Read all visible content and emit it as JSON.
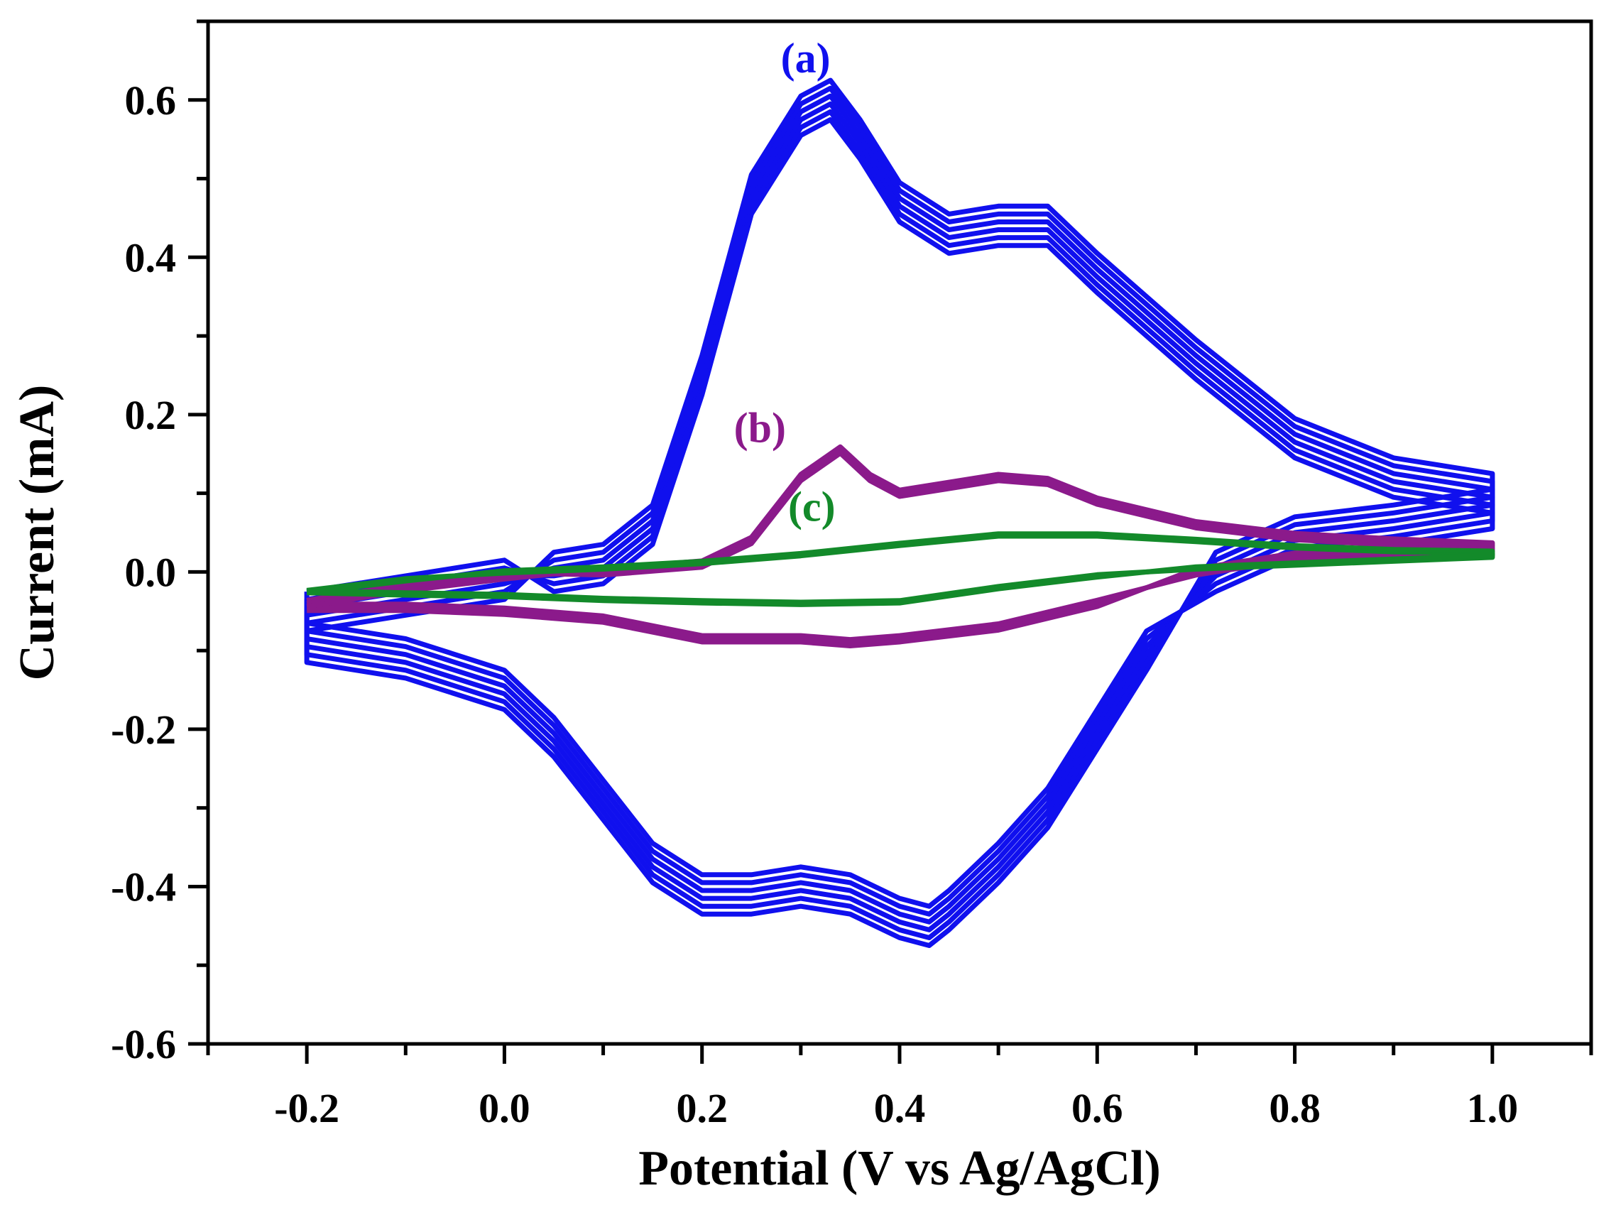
{
  "chart_data": {
    "type": "line",
    "title": "",
    "xlabel": "Potential (V vs Ag/AgCl)",
    "ylabel": "Current (mA)",
    "xlim": [
      -0.3,
      1.1
    ],
    "ylim": [
      -0.6,
      0.7
    ],
    "x_ticks": [
      -0.2,
      0.0,
      0.2,
      0.4,
      0.6,
      0.8,
      1.0
    ],
    "x_tick_labels": [
      "-0.2",
      "0.0",
      "0.2",
      "0.4",
      "0.6",
      "0.8",
      "1.0"
    ],
    "y_ticks": [
      -0.6,
      -0.4,
      -0.2,
      0.0,
      0.2,
      0.4,
      0.6
    ],
    "y_tick_labels": [
      "-0.6",
      "-0.4",
      "-0.2",
      "0.0",
      "0.2",
      "0.4",
      "0.6"
    ],
    "grid": false,
    "legend": "none",
    "series": [
      {
        "name": "(a)",
        "color": "#1010ee",
        "stroke": 7,
        "cycles": 6,
        "cycle_offset": 0.01,
        "x": [
          -0.2,
          -0.1,
          0.0,
          0.05,
          0.1,
          0.15,
          0.2,
          0.25,
          0.3,
          0.33,
          0.36,
          0.4,
          0.45,
          0.5,
          0.55,
          0.6,
          0.7,
          0.8,
          0.9,
          1.0,
          1.0,
          0.9,
          0.8,
          0.72,
          0.65,
          0.55,
          0.5,
          0.45,
          0.43,
          0.4,
          0.35,
          0.3,
          0.25,
          0.2,
          0.15,
          0.1,
          0.05,
          0.0,
          -0.1,
          -0.2,
          -0.2
        ],
        "y": [
          -0.05,
          -0.03,
          -0.01,
          0.0,
          0.01,
          0.06,
          0.25,
          0.48,
          0.58,
          0.6,
          0.55,
          0.47,
          0.43,
          0.44,
          0.44,
          0.38,
          0.27,
          0.17,
          0.12,
          0.1,
          0.08,
          0.06,
          0.045,
          0.0,
          -0.1,
          -0.3,
          -0.37,
          -0.43,
          -0.45,
          -0.44,
          -0.41,
          -0.4,
          -0.41,
          -0.41,
          -0.37,
          -0.29,
          -0.21,
          -0.15,
          -0.11,
          -0.09,
          -0.05
        ]
      },
      {
        "name": "(b)",
        "color": "#8b1a8b",
        "stroke": 7,
        "cycles": 3,
        "cycle_offset": 0.004,
        "x": [
          -0.2,
          -0.1,
          0.0,
          0.1,
          0.2,
          0.25,
          0.3,
          0.34,
          0.37,
          0.4,
          0.45,
          0.5,
          0.55,
          0.6,
          0.7,
          0.8,
          0.9,
          1.0,
          1.0,
          0.9,
          0.8,
          0.7,
          0.6,
          0.5,
          0.4,
          0.35,
          0.3,
          0.25,
          0.2,
          0.1,
          0.0,
          -0.1,
          -0.2
        ],
        "y": [
          -0.04,
          -0.02,
          -0.005,
          0.0,
          0.01,
          0.04,
          0.12,
          0.155,
          0.12,
          0.1,
          0.11,
          0.12,
          0.115,
          0.09,
          0.06,
          0.045,
          0.038,
          0.033,
          0.03,
          0.025,
          0.02,
          0.0,
          -0.04,
          -0.07,
          -0.085,
          -0.09,
          -0.085,
          -0.085,
          -0.085,
          -0.06,
          -0.05,
          -0.045,
          -0.045
        ]
      },
      {
        "name": "(c)",
        "color": "#138a2a",
        "stroke": 7,
        "cycles": 2,
        "cycle_offset": 0.003,
        "x": [
          -0.2,
          -0.1,
          0.0,
          0.1,
          0.2,
          0.3,
          0.4,
          0.5,
          0.6,
          0.7,
          0.8,
          0.9,
          1.0,
          1.0,
          0.9,
          0.8,
          0.7,
          0.6,
          0.5,
          0.4,
          0.3,
          0.2,
          0.1,
          0.0,
          -0.1,
          -0.2
        ],
        "y": [
          -0.025,
          -0.01,
          0.0,
          0.005,
          0.012,
          0.022,
          0.035,
          0.047,
          0.047,
          0.04,
          0.032,
          0.027,
          0.025,
          0.02,
          0.015,
          0.01,
          0.005,
          -0.005,
          -0.02,
          -0.038,
          -0.04,
          -0.038,
          -0.035,
          -0.03,
          -0.028,
          -0.025
        ]
      }
    ],
    "annotations": [
      {
        "text": "(a)",
        "x": 0.33,
        "y": 0.635,
        "color": "#1010ee"
      },
      {
        "text": "(b)",
        "x": 0.285,
        "y": 0.165,
        "color": "#8b1a8b"
      },
      {
        "text": "(c)",
        "x": 0.335,
        "y": 0.065,
        "color": "#138a2a"
      }
    ]
  }
}
